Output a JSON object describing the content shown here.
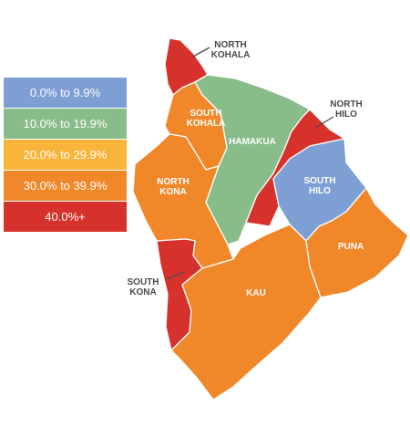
{
  "legend": {
    "items": [
      {
        "label": "0.0% to 9.9%",
        "color": "#7d9fd3"
      },
      {
        "label": "10.0% to 19.9%",
        "color": "#88bc88"
      },
      {
        "label": "20.0% to 29.9%",
        "color": "#f9b43a"
      },
      {
        "label": "30.0% to 39.9%",
        "color": "#f0882a"
      },
      {
        "label": "40.0%+",
        "color": "#d6312a"
      }
    ]
  },
  "regions": {
    "north_kohala": {
      "line1": "NORTH",
      "line2": "KOHALA",
      "bin": "40.0%+",
      "color": "#d6312a"
    },
    "south_kohala": {
      "line1": "SOUTH",
      "line2": "KOHALA",
      "bin": "30.0% to 39.9%",
      "color": "#f0882a"
    },
    "hamakua": {
      "line1": "HAMAKUA",
      "bin": "10.0% to 19.9%",
      "color": "#88bc88"
    },
    "north_hilo": {
      "line1": "NORTH",
      "line2": "HILO",
      "bin": "40.0%+",
      "color": "#d6312a"
    },
    "south_hilo": {
      "line1": "SOUTH",
      "line2": "HILO",
      "bin": "0.0% to 9.9%",
      "color": "#7d9fd3"
    },
    "north_kona": {
      "line1": "NORTH",
      "line2": "KONA",
      "bin": "30.0% to 39.9%",
      "color": "#f0882a"
    },
    "south_kona": {
      "line1": "SOUTH",
      "line2": "KONA",
      "bin": "40.0%+",
      "color": "#d6312a"
    },
    "kau": {
      "line1": "KAU",
      "bin": "30.0% to 39.9%",
      "color": "#f0882a"
    },
    "puna": {
      "line1": "PUNA",
      "bin": "30.0% to 39.9%",
      "color": "#f0882a"
    }
  },
  "colors": {
    "label_dark": "#4a4a4a",
    "label_light": "#ffffff",
    "background": "#ffffff"
  }
}
